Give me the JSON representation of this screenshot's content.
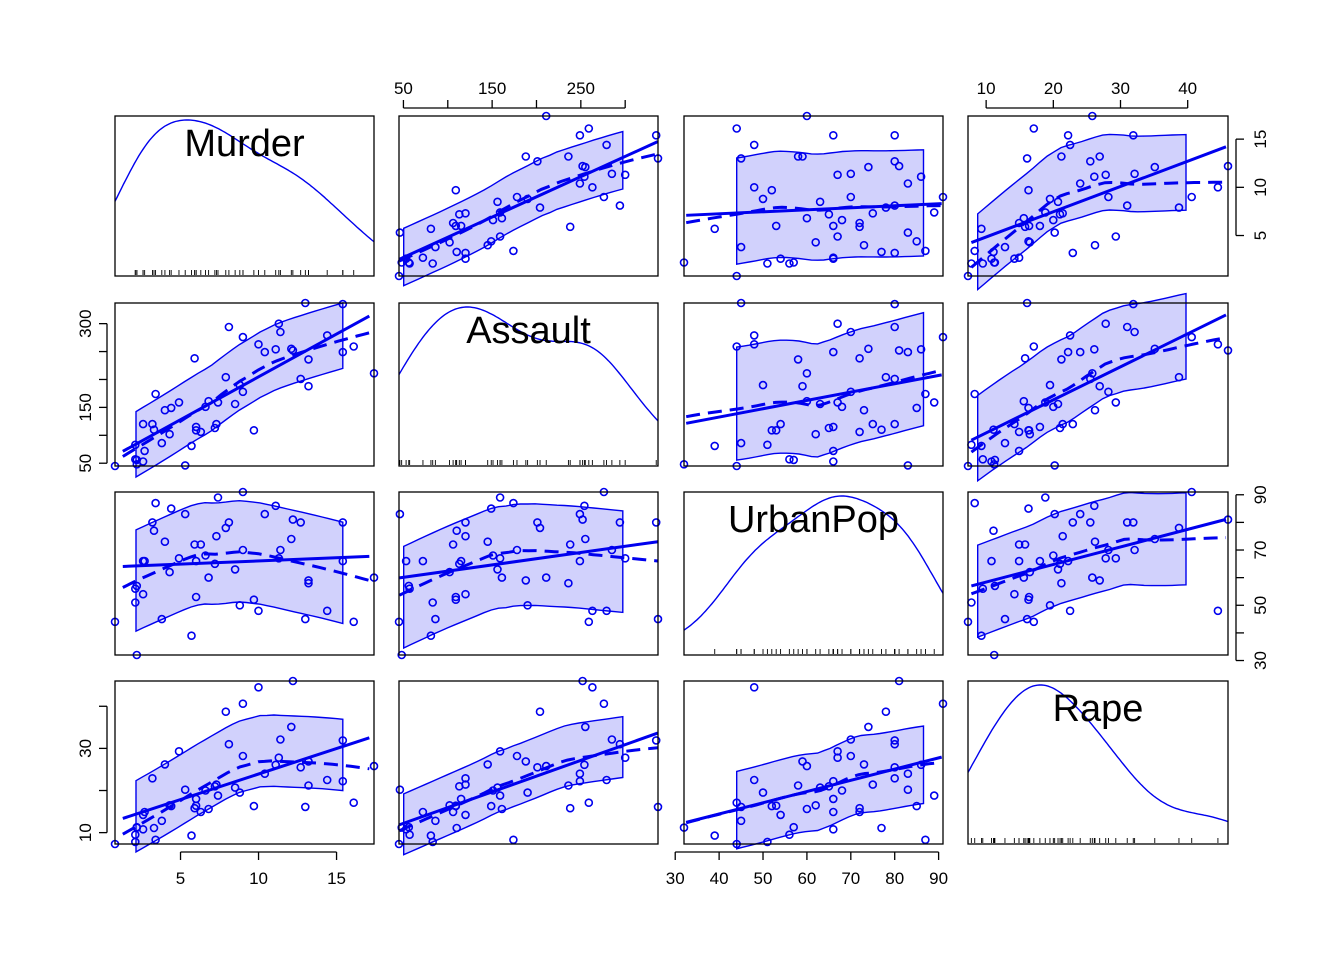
{
  "chart_data": {
    "type": "scatter",
    "plot_kind": "scatterplot matrix",
    "variables": [
      "Murder",
      "Assault",
      "UrbanPop",
      "Rape"
    ],
    "ranges": {
      "Murder": [
        0.8,
        17.4
      ],
      "Assault": [
        45,
        337
      ],
      "UrbanPop": [
        32,
        91
      ],
      "Rape": [
        7.3,
        46.0
      ]
    },
    "ticks": {
      "Murder": [
        5,
        10,
        15
      ],
      "Assault": [
        50,
        100,
        150,
        200,
        250,
        300
      ],
      "UrbanPop": [
        30,
        40,
        50,
        60,
        70,
        80,
        90
      ],
      "Rape": [
        10,
        20,
        30,
        40
      ]
    },
    "tick_labels": {
      "Murder": [
        "5",
        "10",
        "15"
      ],
      "Assault_top": [
        "50",
        "150",
        "250"
      ],
      "Assault_left": [
        "50",
        "150",
        "300"
      ],
      "UrbanPop_bottom": [
        "30",
        "40",
        "50",
        "60",
        "70",
        "80",
        "90"
      ],
      "UrbanPop_right": [
        "30",
        "50",
        "70",
        "90"
      ],
      "Rape_top": [
        "10",
        "20",
        "30",
        "40"
      ],
      "Rape_left": [
        "10",
        "30"
      ],
      "Murder_right": [
        "5",
        "10",
        "15"
      ]
    },
    "series": [
      {
        "name": "Murder",
        "values": [
          13.2,
          10.0,
          8.1,
          8.8,
          9.0,
          7.9,
          3.3,
          5.9,
          15.4,
          17.4,
          5.3,
          2.6,
          10.4,
          7.2,
          2.2,
          6.0,
          9.7,
          15.4,
          2.1,
          11.3,
          4.4,
          12.1,
          2.7,
          16.1,
          9.0,
          6.0,
          4.3,
          12.2,
          2.1,
          7.4,
          11.4,
          11.1,
          13.0,
          0.8,
          7.3,
          6.6,
          4.9,
          6.3,
          3.4,
          14.4,
          3.8,
          13.2,
          12.7,
          3.2,
          2.2,
          8.5,
          4.0,
          5.7,
          2.6,
          6.8
        ]
      },
      {
        "name": "Assault",
        "values": [
          236,
          263,
          294,
          190,
          276,
          204,
          110,
          238,
          335,
          211,
          46,
          120,
          249,
          113,
          56,
          115,
          109,
          249,
          83,
          300,
          149,
          255,
          72,
          259,
          178,
          109,
          102,
          252,
          57,
          159,
          285,
          254,
          337,
          45,
          120,
          151,
          159,
          106,
          174,
          279,
          86,
          188,
          201,
          120,
          48,
          156,
          145,
          81,
          53,
          161
        ]
      },
      {
        "name": "UrbanPop",
        "values": [
          58,
          48,
          80,
          50,
          91,
          78,
          77,
          72,
          80,
          60,
          83,
          54,
          83,
          65,
          57,
          66,
          52,
          66,
          51,
          67,
          85,
          74,
          66,
          44,
          70,
          53,
          62,
          81,
          56,
          89,
          70,
          86,
          45,
          44,
          75,
          68,
          67,
          72,
          87,
          48,
          45,
          59,
          80,
          80,
          32,
          63,
          73,
          39,
          66,
          60
        ]
      },
      {
        "name": "Rape",
        "values": [
          21.2,
          44.5,
          31.0,
          19.5,
          40.6,
          38.7,
          11.1,
          15.8,
          31.9,
          25.8,
          20.2,
          14.2,
          24.0,
          21.0,
          11.3,
          18.0,
          16.3,
          22.2,
          7.8,
          27.8,
          16.3,
          35.1,
          14.9,
          17.1,
          28.2,
          16.4,
          16.5,
          46.0,
          9.5,
          18.8,
          32.1,
          26.1,
          16.1,
          7.3,
          21.4,
          20.0,
          29.3,
          14.9,
          8.3,
          22.5,
          12.8,
          26.9,
          25.5,
          22.9,
          11.2,
          20.7,
          26.2,
          9.3,
          10.8,
          15.6
        ]
      }
    ],
    "overlays": [
      "linear fit (solid)",
      "loess smooth (dashed)",
      "spread band (shaded)",
      "kernel density with rug on diagonal"
    ],
    "colors": {
      "points": "#0000ee",
      "axes": "#000000",
      "background": "#ffffff"
    },
    "grid": false
  }
}
